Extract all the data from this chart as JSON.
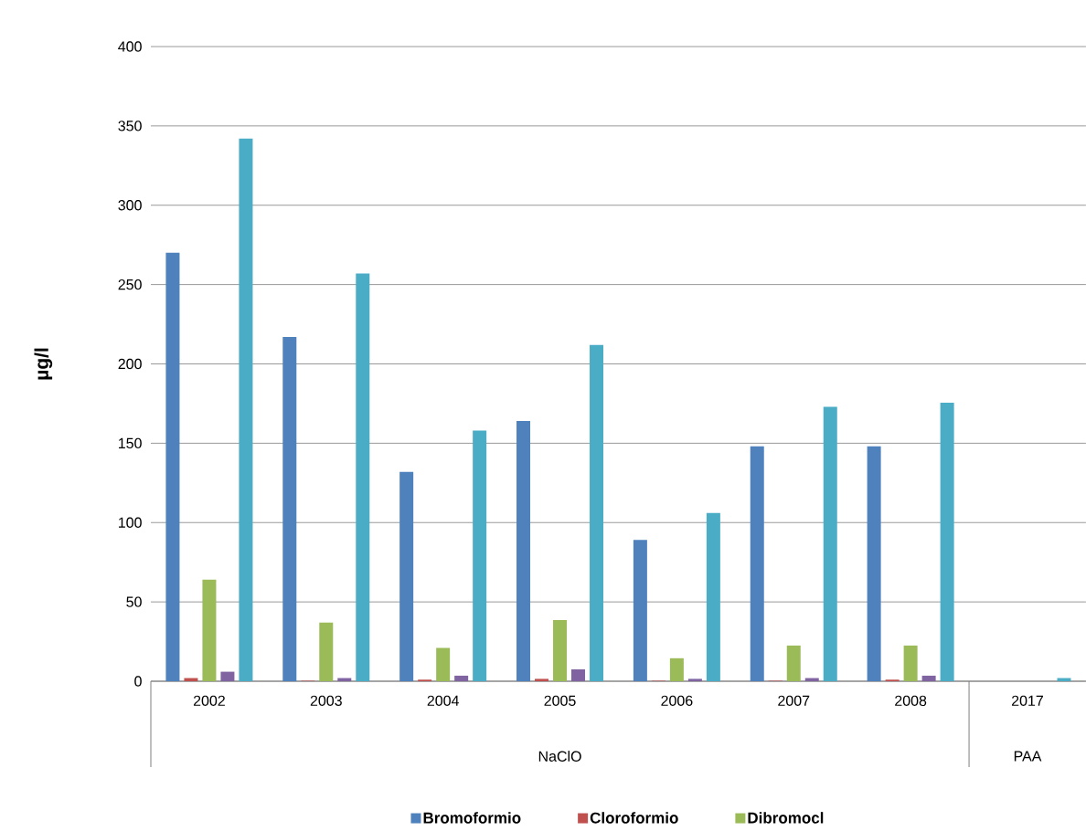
{
  "chart_data": {
    "type": "bar",
    "ylabel": "µg/l",
    "categories": [
      "2002",
      "2003",
      "2004",
      "2005",
      "2006",
      "2007",
      "2008",
      "2017"
    ],
    "series": [
      {
        "name": "Bromoformio",
        "color": "#4f81bd",
        "values": [
          270,
          217,
          132,
          164,
          89,
          148,
          148,
          0
        ]
      },
      {
        "name": "Cloroformio",
        "color": "#c0504d",
        "values": [
          2,
          0.3,
          1,
          1.5,
          0.3,
          0.3,
          1,
          0
        ]
      },
      {
        "name": "Dibromocl",
        "color": "#9bbb59",
        "values": [
          64,
          37,
          21,
          38.5,
          14.5,
          22.5,
          22.5,
          0
        ]
      },
      {
        "color": "#8064a2",
        "values": [
          6,
          2,
          3.5,
          7.5,
          1.5,
          2,
          3.5,
          0
        ]
      },
      {
        "color": "#4bacc6",
        "values": [
          342,
          257,
          158,
          212,
          106,
          173,
          175.5,
          2
        ]
      }
    ],
    "ylim": [
      0,
      400
    ],
    "yticks": [
      0,
      50,
      100,
      150,
      200,
      250,
      300,
      350,
      400
    ],
    "grid": "y",
    "legend": "bottom",
    "annotations": [
      "NaClO",
      "PAA"
    ]
  }
}
